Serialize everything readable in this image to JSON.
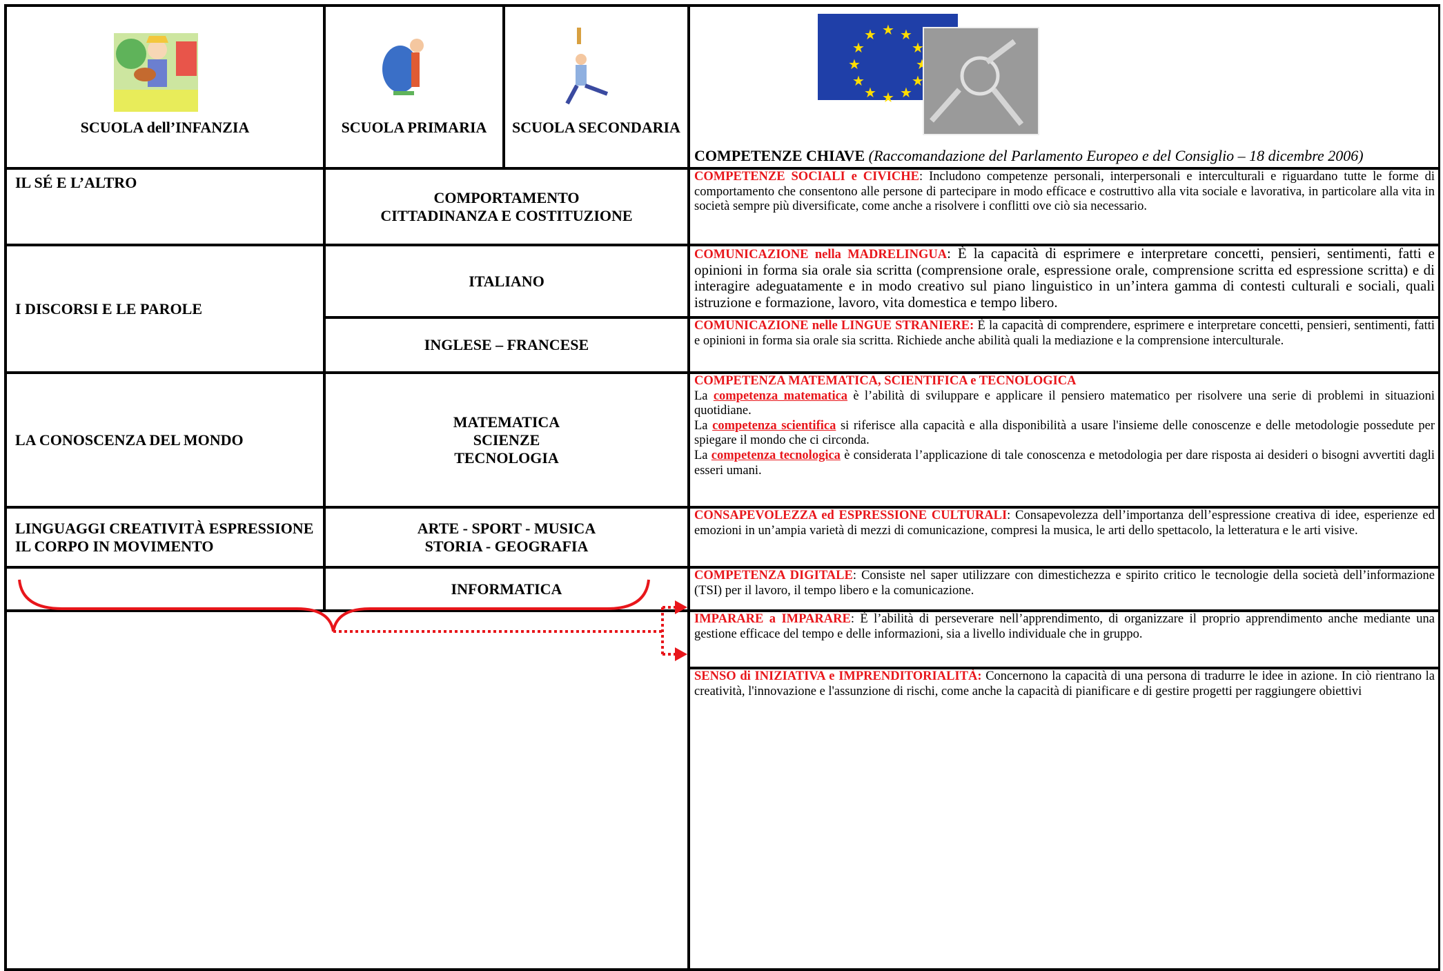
{
  "header": {
    "infanzia": "SCUOLA dell’INFANZIA",
    "primaria": "SCUOLA PRIMARIA",
    "secondaria": "SCUOLA SECONDARIA",
    "competenze": "COMPETENZE CHIAVE",
    "note": "(Raccomandazione del Parlamento Europeo e del Consiglio – 18 dicembre 2006)"
  },
  "fields": [
    [
      "IL SÉ E L’ALTRO"
    ],
    [
      "I DISCORSI E LE PAROLE"
    ],
    [
      "LA CONOSCENZA DEL MONDO"
    ],
    [
      "LINGUAGGI CREATIVITÀ ESPRESSIONE",
      "IL CORPO IN MOVIMENTO"
    ]
  ],
  "subjects": [
    [
      "COMPORTAMENTO",
      "CITTADINANZA E COSTITUZIONE"
    ],
    [
      "ITALIANO"
    ],
    [
      "INGLESE – FRANCESE"
    ],
    [
      "MATEMATICA",
      "SCIENZE",
      "TECNOLOGIA"
    ],
    [
      "ARTE - SPORT - MUSICA",
      "STORIA - GEOGRAFIA"
    ],
    [
      "INFORMATICA"
    ]
  ],
  "competences": [
    {
      "title": "COMPETENZE SOCIALI e CIVICHE",
      "text": ": Includono competenze personali, interpersonali e interculturali e riguardano tutte le forme di comportamento che consentono alle persone di partecipare in modo efficace e costruttivo alla vita sociale e lavorativa, in particolare alla vita in società sempre più diversificate, come anche a risolvere i conflitti ove ciò sia necessario."
    },
    {
      "title": "COMUNICAZIONE nella MADRELINGUA",
      "text": ": È la capacità di esprimere e interpretare concetti, pensieri, sentimenti, fatti e opinioni in forma sia orale sia scritta (comprensione orale, espressione orale, comprensione scritta ed espressione scritta) e di interagire adeguatamente e in modo creativo sul piano linguistico in un’intera gamma di contesti culturali e sociali, quali istruzione e formazione, lavoro, vita domestica e tempo libero."
    },
    {
      "title": "COMUNICAZIONE nelle LINGUE STRANIERE:",
      "text": "È  la capacità di comprendere, esprimere e interpretare concetti, pensieri, sentimenti, fatti e opinioni in forma sia orale sia scritta. Richiede anche abilità quali la mediazione e la comprensione interculturale."
    },
    {
      "title": "COMPETENZA MATEMATICA, SCIENTIFICA e  TECNOLOGICA",
      "paragraphs": [
        {
          "pre": "La",
          "term": "competenza matematica",
          "post": "è l’abilità di  sviluppare e applicare il pensiero matematico per risolvere una serie di problemi in situazioni quotidiane."
        },
        {
          "pre": "La",
          "term": "competenza scientifica",
          "post": "si riferisce alla capacità e alla disponibilità a usare  l'insieme delle conoscenze e delle metodologie possedute per spiegare il mondo che ci circonda."
        },
        {
          "pre": "La",
          "term": "competenza tecnologica",
          "post": " è considerata l’applicazione di tale conoscenza e metodologia per dare risposta ai desideri o bisogni avvertiti dagli esseri umani."
        }
      ]
    },
    {
      "title": "CONSAPEVOLEZZA ed ESPRESSIONE CULTURALI",
      "text": ": Consapevolezza dell’importanza dell’espressione creativa di idee, esperienze ed emozioni in un’ampia varietà di mezzi di comunicazione, compresi la musica, le arti dello spettacolo, la letteratura e le arti visive."
    },
    {
      "title": "COMPETENZA  DIGITALE",
      "text": ": Consiste nel saper utilizzare con dimestichezza e spirito critico le tecnologie della società dell’informazione (TSI) per il lavoro, il tempo libero  e la comunicazione."
    },
    {
      "title": "IMPARARE a IMPARARE",
      "text": ": È l’abilità di perseverare nell’apprendimento, di organizzare il proprio apprendimento anche mediante  una gestione efficace del tempo e delle informazioni, sia a livello individuale che in gruppo."
    },
    {
      "title": "SENSO di INIZIATIVA e IMPRENDITORIALITÀ:",
      "text": "Concernono la capacità di una persona di tradurre le idee in azione. In ciò rientrano la creatività, l'innovazione e l'assunzione di rischi, come anche la capacità di pianificare e di gestire progetti per raggiungere obiettivi"
    }
  ]
}
